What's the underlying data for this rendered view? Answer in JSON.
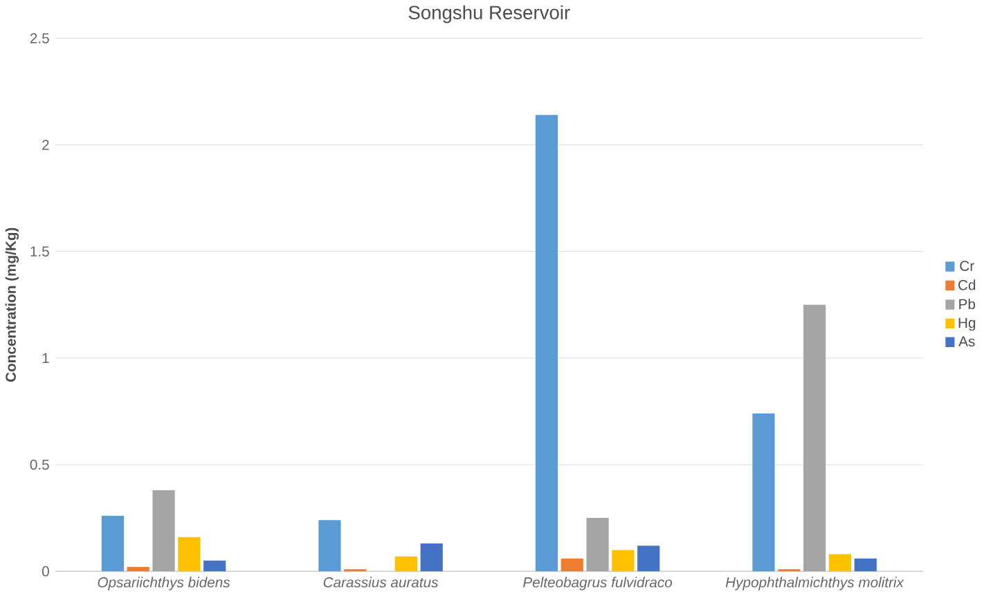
{
  "chart_data": {
    "type": "bar",
    "title": "Songshu  Reservoir",
    "ylabel": "Concentration (mg/Kg)",
    "categories": [
      "Opsariichthys bidens",
      "Carassius auratus",
      "Pelteobagrus fulvidraco",
      "Hypophthalmichthys molitrix"
    ],
    "series": [
      {
        "name": "Cr",
        "color": "#5b9bd5",
        "values": [
          0.26,
          0.24,
          2.14,
          0.74
        ]
      },
      {
        "name": "Cd",
        "color": "#ed7d31",
        "values": [
          0.02,
          0.01,
          0.06,
          0.01
        ]
      },
      {
        "name": "Pb",
        "color": "#a5a5a5",
        "values": [
          0.38,
          0,
          0.25,
          1.25
        ]
      },
      {
        "name": "Hg",
        "color": "#ffc000",
        "values": [
          0.16,
          0.07,
          0.1,
          0.08
        ]
      },
      {
        "name": "As",
        "color": "#4472c4",
        "values": [
          0.05,
          0.13,
          0.12,
          0.06
        ]
      }
    ],
    "ylim": [
      0,
      2.5
    ],
    "yticks": [
      0,
      0.5,
      1,
      1.5,
      2,
      2.5
    ],
    "grid": "y",
    "legend": "right"
  }
}
